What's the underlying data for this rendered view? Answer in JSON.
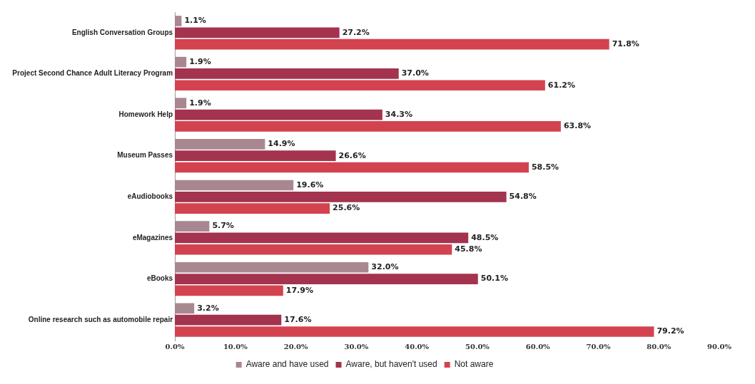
{
  "chart_data": {
    "type": "bar",
    "orientation": "horizontal",
    "categories": [
      "English Conversation Groups",
      "Project Second Chance Adult Literacy Program",
      "Homework Help",
      "Museum Passes",
      "eAudiobooks",
      "eMagazines",
      "eBooks",
      "Online research such as automobile repair"
    ],
    "series": [
      {
        "name": "Aware and have used",
        "color": "#a98791",
        "values": [
          1.1,
          1.9,
          1.9,
          14.9,
          19.6,
          5.7,
          32.0,
          3.2
        ],
        "value_labels": [
          "1.1%",
          "1.9%",
          "1.9%",
          "14.9%",
          "19.6%",
          "5.7%",
          "32.0%",
          "3.2%"
        ]
      },
      {
        "name": "Aware, but haven't used",
        "color": "#a3334f",
        "values": [
          27.2,
          37.0,
          34.3,
          26.6,
          54.8,
          48.5,
          50.1,
          17.6
        ],
        "value_labels": [
          "27.2%",
          "37.0%",
          "34.3%",
          "26.6%",
          "54.8%",
          "48.5%",
          "50.1%",
          "17.6%"
        ]
      },
      {
        "name": "Not aware",
        "color": "#d2434f",
        "values": [
          71.8,
          61.2,
          63.8,
          58.5,
          25.6,
          45.8,
          17.9,
          79.2
        ],
        "value_labels": [
          "71.8%",
          "61.2%",
          "63.8%",
          "58.5%",
          "25.6%",
          "45.8%",
          "17.9%",
          "79.2%"
        ]
      }
    ],
    "xlim": [
      0,
      90
    ],
    "xticks": [
      {
        "value": 0,
        "label": "0.0%"
      },
      {
        "value": 10,
        "label": "10.0%"
      },
      {
        "value": 20,
        "label": "20.0%"
      },
      {
        "value": 30,
        "label": "30.0%"
      },
      {
        "value": 40,
        "label": "40.0%"
      },
      {
        "value": 50,
        "label": "50.0%"
      },
      {
        "value": 60,
        "label": "60.0%"
      },
      {
        "value": 70,
        "label": "70.0%"
      },
      {
        "value": 80,
        "label": "80.0%"
      },
      {
        "value": 90,
        "label": "90.0%"
      }
    ],
    "grid": false,
    "legend": "bottom"
  }
}
